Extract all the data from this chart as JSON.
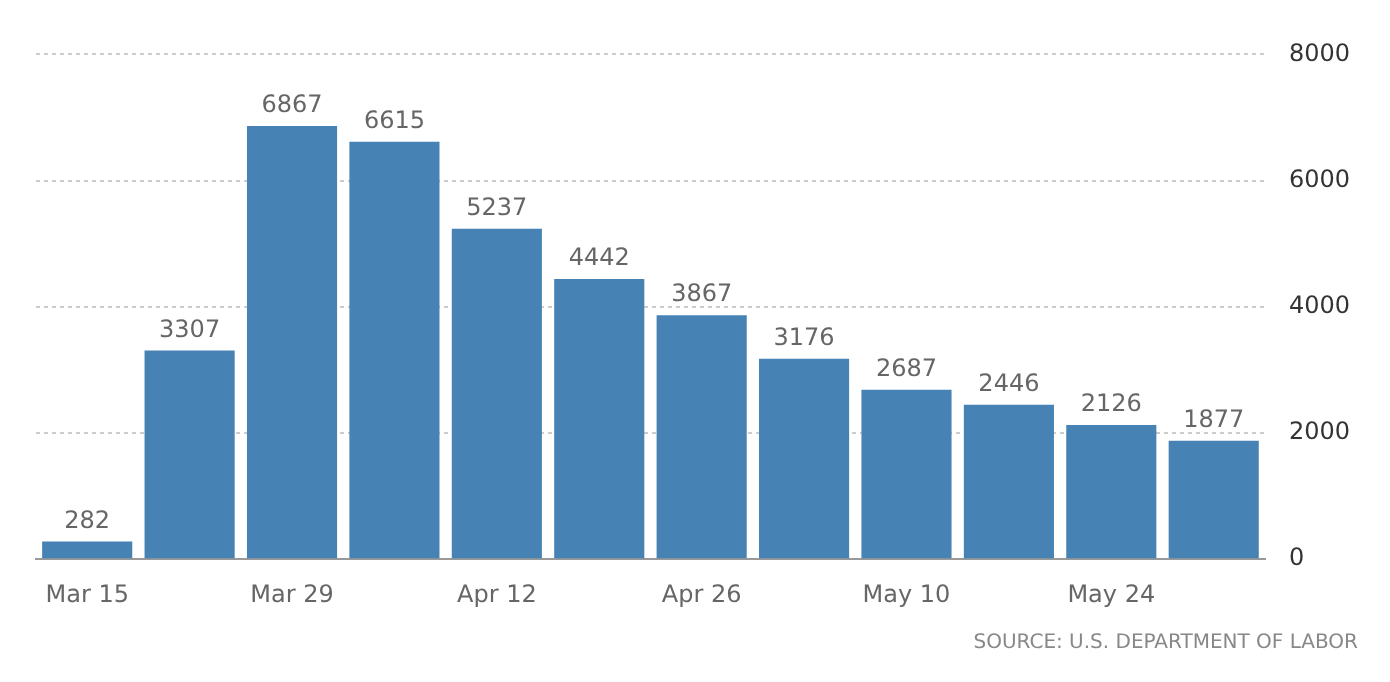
{
  "chart_data": {
    "type": "bar",
    "categories": [
      "Mar 15",
      null,
      "Mar 29",
      null,
      "Apr 12",
      null,
      "Apr 26",
      null,
      "May 10",
      null,
      "May 24",
      null
    ],
    "values": [
      282,
      3307,
      6867,
      6615,
      5237,
      4442,
      3867,
      3176,
      2687,
      2446,
      2126,
      1877
    ],
    "color": "#4682b4",
    "ylim": [
      0,
      8000
    ],
    "yticks": [
      0,
      2000,
      4000,
      6000,
      8000
    ],
    "grid": "y",
    "data_labels": true,
    "annotations": [
      "SOURCE: U.S. DEPARTMENT OF LABOR"
    ]
  }
}
